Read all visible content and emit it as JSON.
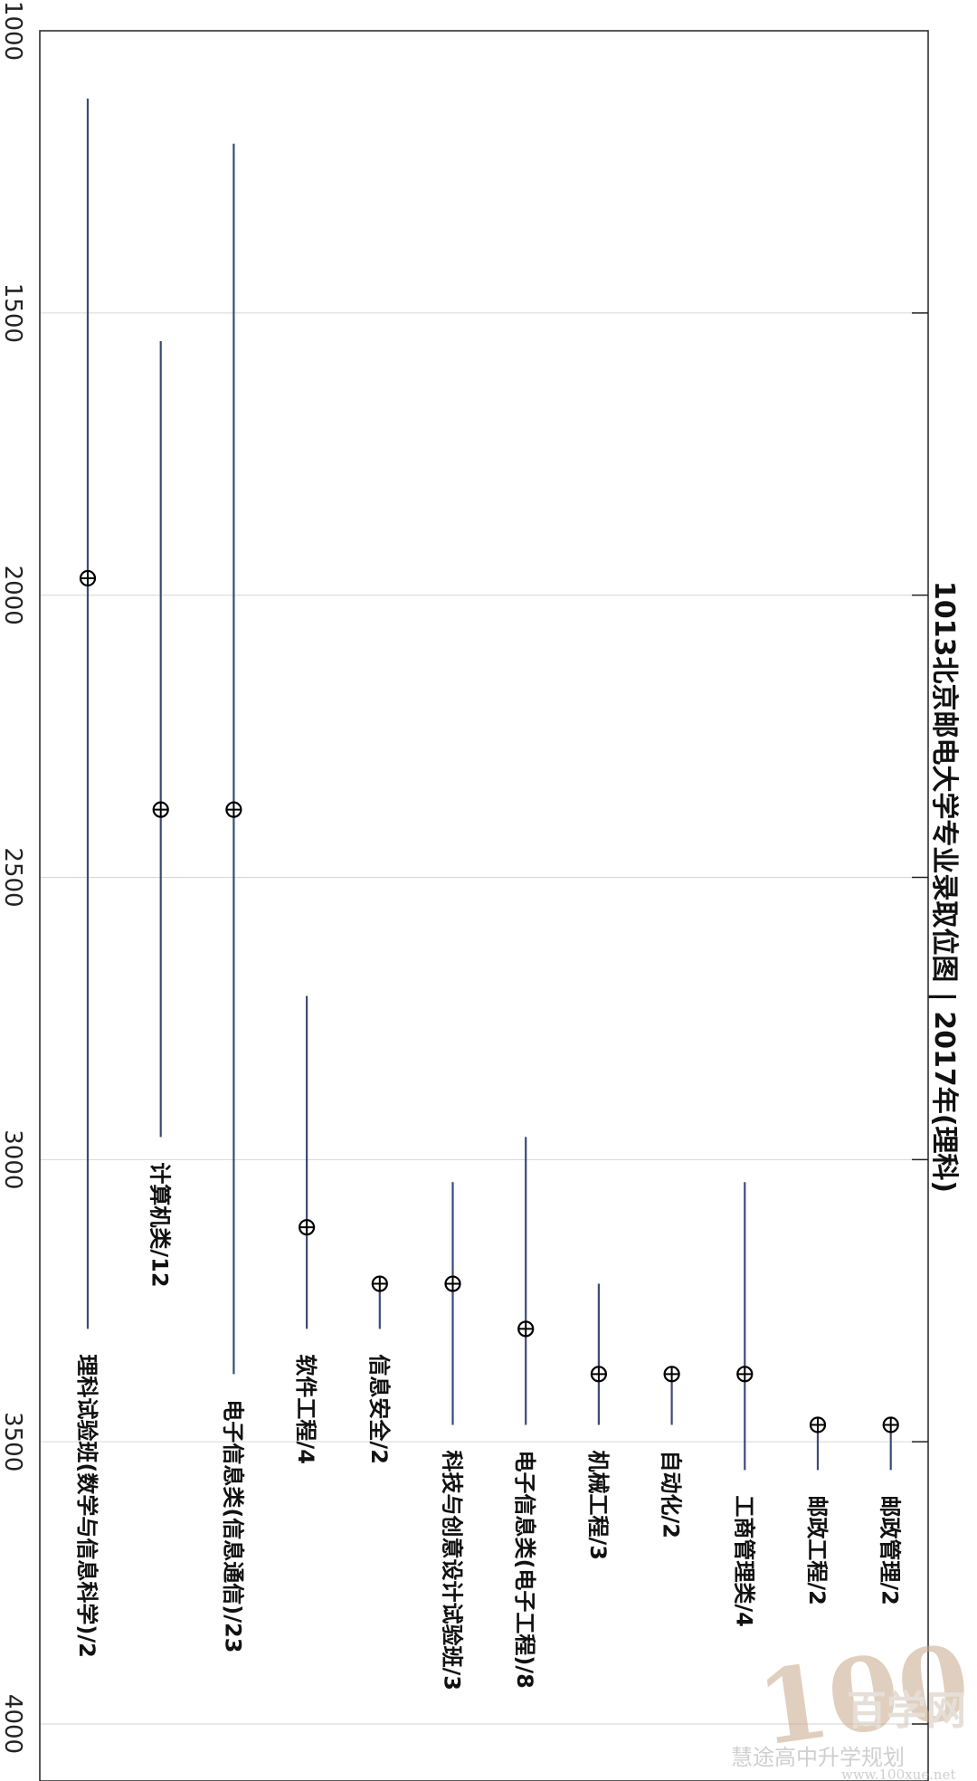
{
  "chart_data": {
    "type": "range",
    "title": "1013北京邮电大学专业录取位图 | 2017年(理科)",
    "value_axis": {
      "range": [
        1000,
        4000
      ],
      "ticks": [
        1000,
        1500,
        2000,
        2500,
        3000,
        3500,
        4000
      ],
      "grid": true
    },
    "series": [
      {
        "label": "理科试验班(数学与信息科学)/2",
        "low": 1120,
        "high": 3300,
        "point": 1970
      },
      {
        "label": "计算机类/12",
        "low": 1550,
        "high": 2960,
        "point": 2380
      },
      {
        "label": "电子信息类(信息通信)/23",
        "low": 1200,
        "high": 3380,
        "point": 2380
      },
      {
        "label": "软件工程/4",
        "low": 2710,
        "high": 3300,
        "point": 3120
      },
      {
        "label": "信息安全/2",
        "low": 3220,
        "high": 3300,
        "point": 3220
      },
      {
        "label": "科技与创意设计试验班/3",
        "low": 3040,
        "high": 3470,
        "point": 3220
      },
      {
        "label": "电子信息类(电子工程)/8",
        "low": 2960,
        "high": 3470,
        "point": 3300
      },
      {
        "label": "机械工程/3",
        "low": 3220,
        "high": 3470,
        "point": 3380
      },
      {
        "label": "自动化/2",
        "low": 3380,
        "high": 3470,
        "point": 3380
      },
      {
        "label": "工商管理类/4",
        "low": 3040,
        "high": 3550,
        "point": 3380
      },
      {
        "label": "邮政工程/2",
        "low": 3470,
        "high": 3550,
        "point": 3470
      },
      {
        "label": "邮政管理/2",
        "low": 3470,
        "high": 3550,
        "point": 3470
      }
    ]
  },
  "watermark": {
    "big": "100",
    "brand": "百学网",
    "sub": "慧途高中升学规划",
    "url": "www.100xue.net"
  },
  "colors": {
    "bar": "#3b4a78",
    "grid": "#d6d6d6",
    "frame": "#222222",
    "marker": "#000000"
  }
}
